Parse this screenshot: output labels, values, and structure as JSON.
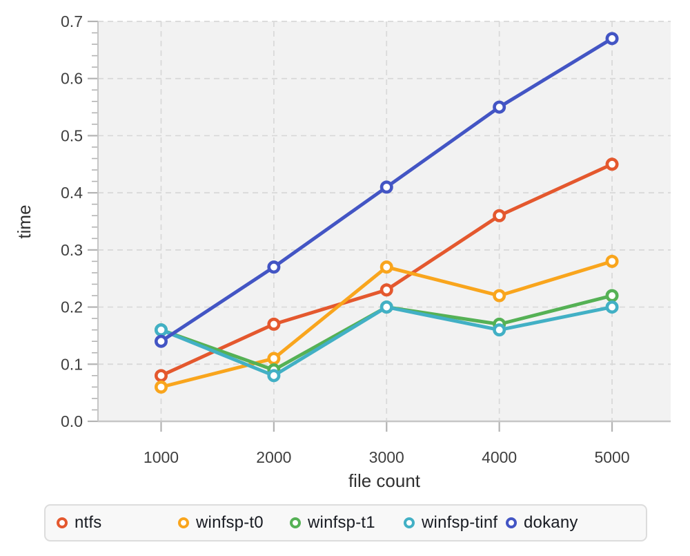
{
  "figure": {
    "background": "#ffffff",
    "plot_background": "#f2f2f2",
    "grid_color": "#d8d8d8",
    "spine_color": "#c6c6c6",
    "tick_color": "#b3b3b3",
    "tick_label_color": "#3f3f3f",
    "axis_label_color": "#2f2f2f",
    "legend_text_color": "#181b22"
  },
  "chart_data": {
    "type": "line",
    "title": "",
    "xlabel": "file count",
    "ylabel": "time",
    "x": [
      1000,
      2000,
      3000,
      4000,
      5000
    ],
    "x_tick_labels": [
      "1000",
      "2000",
      "3000",
      "4000",
      "5000"
    ],
    "y_ticks": [
      0.0,
      0.1,
      0.2,
      0.3,
      0.4,
      0.5,
      0.6,
      0.7
    ],
    "y_tick_labels": [
      "0.0",
      "0.1",
      "0.2",
      "0.3",
      "0.4",
      "0.5",
      "0.6",
      "0.7"
    ],
    "y_minor_step": 0.02,
    "xlim": [
      440,
      5520
    ],
    "ylim": [
      0.0,
      0.7
    ],
    "grid": "dashed",
    "legend_position": "bottom",
    "marker": "open-circle",
    "series": [
      {
        "name": "ntfs",
        "color": "#e4582e",
        "values": [
          0.08,
          0.17,
          0.23,
          0.36,
          0.45
        ]
      },
      {
        "name": "winfsp-t0",
        "color": "#f9a51d",
        "values": [
          0.06,
          0.11,
          0.27,
          0.22,
          0.28
        ]
      },
      {
        "name": "winfsp-t1",
        "color": "#55b155",
        "values": [
          0.16,
          0.09,
          0.2,
          0.17,
          0.22
        ]
      },
      {
        "name": "winfsp-tinf",
        "color": "#42b0c5",
        "values": [
          0.16,
          0.08,
          0.2,
          0.16,
          0.2
        ]
      },
      {
        "name": "dokany",
        "color": "#4355c4",
        "values": [
          0.14,
          0.27,
          0.41,
          0.55,
          0.67
        ]
      }
    ]
  }
}
